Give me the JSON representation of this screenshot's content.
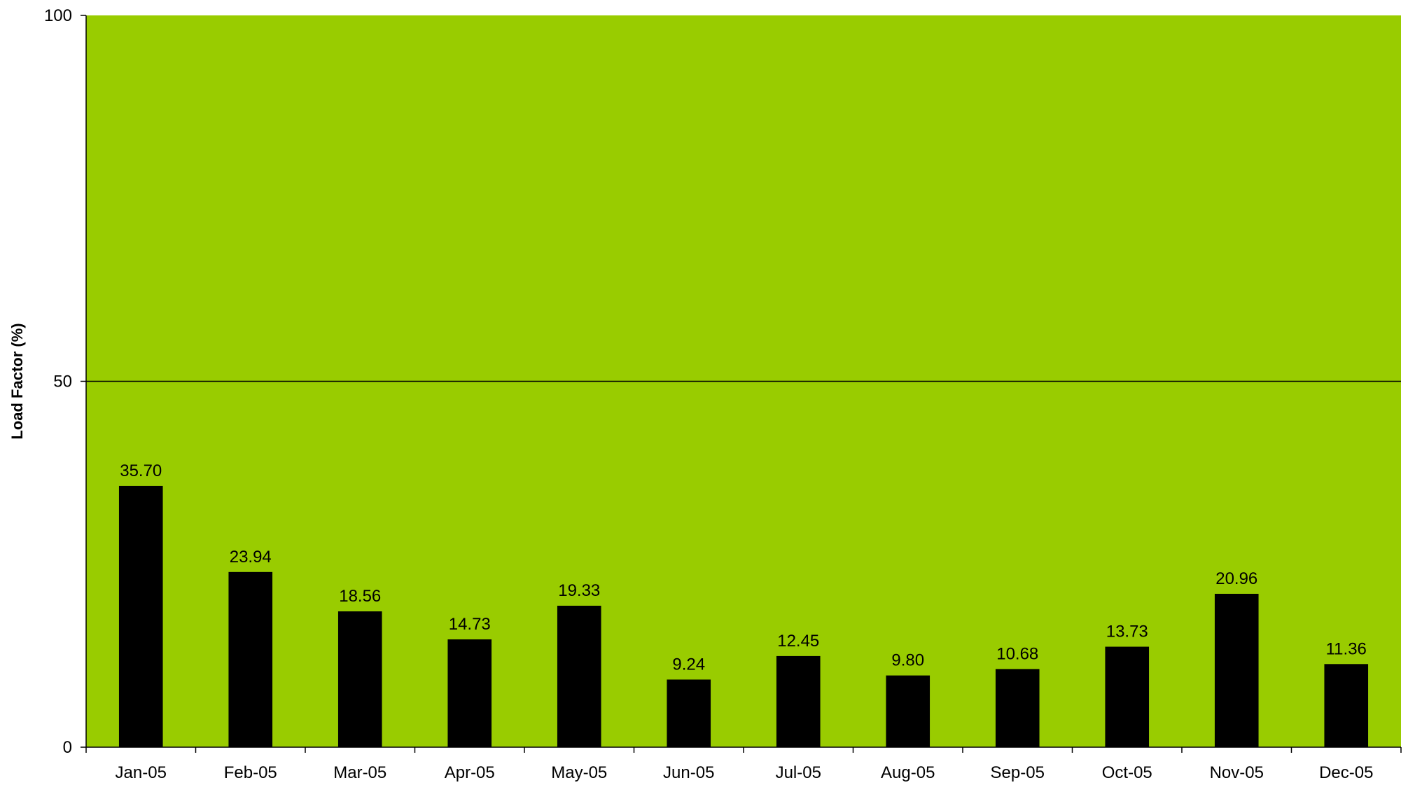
{
  "chart_data": {
    "type": "bar",
    "categories": [
      "Jan-05",
      "Feb-05",
      "Mar-05",
      "Apr-05",
      "May-05",
      "Jun-05",
      "Jul-05",
      "Aug-05",
      "Sep-05",
      "Oct-05",
      "Nov-05",
      "Dec-05"
    ],
    "values": [
      35.7,
      23.94,
      18.56,
      14.73,
      19.33,
      9.24,
      12.45,
      9.8,
      10.68,
      13.73,
      20.96,
      11.36
    ],
    "value_labels": [
      "35.70",
      "23.94",
      "18.56",
      "14.73",
      "19.33",
      "9.24",
      "12.45",
      "9.80",
      "10.68",
      "13.73",
      "20.96",
      "11.36"
    ],
    "title": "",
    "xlabel": "",
    "ylabel": "Load Factor (%)",
    "ylim": [
      0,
      100
    ],
    "yticks": [
      0,
      50,
      100
    ],
    "gridlines": [
      50
    ],
    "grid": true,
    "legend": "none"
  },
  "colors": {
    "plot_background": "#99cc00",
    "bar": "#000000",
    "axis": "#000000",
    "gridline": "#000000"
  }
}
